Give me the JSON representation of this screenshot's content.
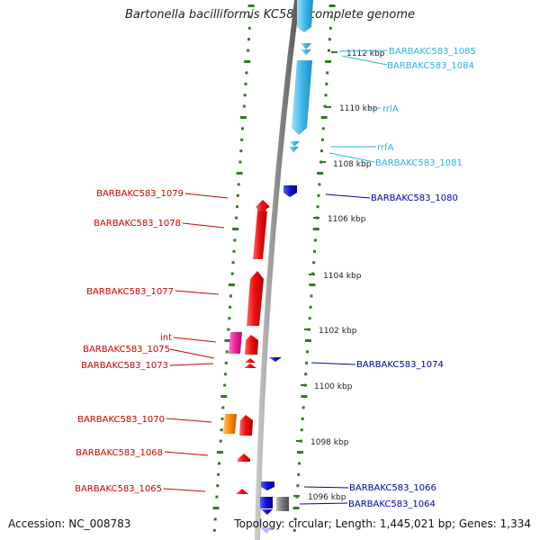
{
  "title": "Bartonella bacilliformis KC583, complete genome",
  "footer": {
    "accession": "Accession: NC_008783",
    "topology": "Topology: circular; Length: 1,445,021 bp; Genes: 1,334"
  },
  "colors": {
    "backbone": "#8c8c8c",
    "tick": "#2e7d1e",
    "forward_gene": "#ee1111",
    "reverse_gene": "#1111cc",
    "rna_gene": "#3fb7ea",
    "label_forward": "#cc0000",
    "label_reverse": "#0000aa",
    "label_rna": "#29b0e3",
    "integrase": "#ee2299",
    "orange_gene": "#ff8800",
    "gray_gene": "#777777"
  },
  "scale": {
    "unit": "kbp",
    "labels": [
      {
        "id": "t1096",
        "kbp": 1096,
        "text": "1096 kbp"
      },
      {
        "id": "t1098",
        "kbp": 1098,
        "text": "1098 kbp"
      },
      {
        "id": "t1100",
        "kbp": 1100,
        "text": "1100 kbp"
      },
      {
        "id": "t1102",
        "kbp": 1102,
        "text": "1102 kbp"
      },
      {
        "id": "t1104",
        "kbp": 1104,
        "text": "1104 kbp"
      },
      {
        "id": "t1106",
        "kbp": 1106,
        "text": "1106 kbp"
      },
      {
        "id": "t1108",
        "kbp": 1108,
        "text": "1108 kbp"
      },
      {
        "id": "t1110",
        "kbp": 1110,
        "text": "1110 kbp"
      },
      {
        "id": "t1112",
        "kbp": 1112,
        "text": "1112 kbp"
      }
    ]
  },
  "genes_forward": [
    {
      "label": "BARBAKC583_1079",
      "type": "cds"
    },
    {
      "label": "BARBAKC583_1078",
      "type": "cds"
    },
    {
      "label": "BARBAKC583_1077",
      "type": "cds"
    },
    {
      "label": "int",
      "type": "integrase"
    },
    {
      "label": "BARBAKC583_1075",
      "type": "cds"
    },
    {
      "label": "BARBAKC583_1073",
      "type": "cds"
    },
    {
      "label": "BARBAKC583_1070",
      "type": "cds"
    },
    {
      "label": "BARBAKC583_1068",
      "type": "cds"
    },
    {
      "label": "BARBAKC583_1065",
      "type": "cds"
    }
  ],
  "genes_reverse": [
    {
      "label": "BARBAKC583_1085",
      "type": "rna"
    },
    {
      "label": "BARBAKC583_1084",
      "type": "rna"
    },
    {
      "label": "rrlA",
      "type": "rna"
    },
    {
      "label": "rrfA",
      "type": "rna"
    },
    {
      "label": "BARBAKC583_1081",
      "type": "rna"
    },
    {
      "label": "BARBAKC583_1080",
      "type": "cds"
    },
    {
      "label": "BARBAKC583_1074",
      "type": "cds"
    },
    {
      "label": "BARBAKC583_1066",
      "type": "cds"
    },
    {
      "label": "BARBAKC583_1064",
      "type": "cds"
    }
  ]
}
